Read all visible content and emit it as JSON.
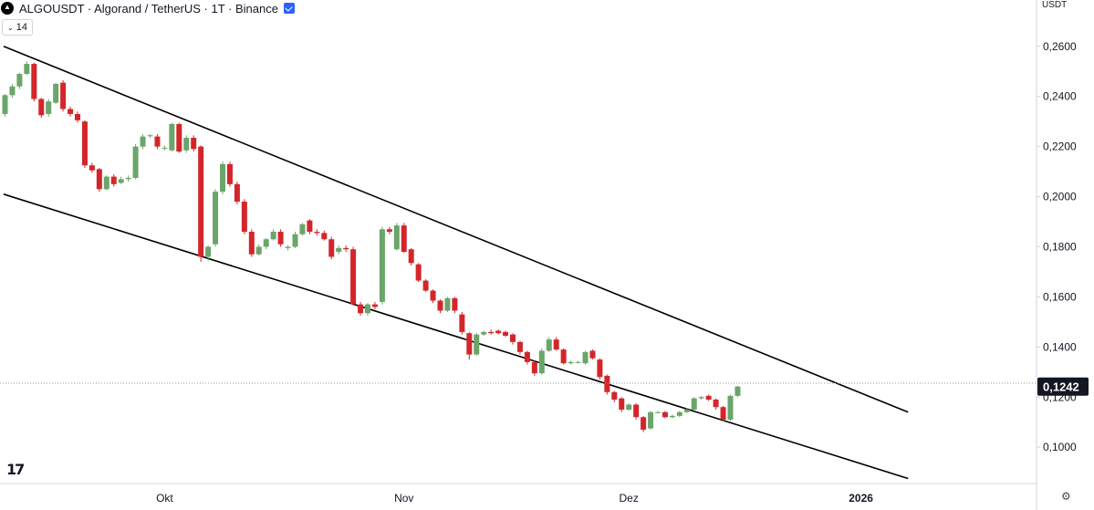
{
  "header": {
    "symbol_line": "ALGOUSDT · Algorand / TetherUS · 1T · Binance"
  },
  "indicator_toggle": {
    "value": "14"
  },
  "currency_label": "USDT",
  "branding": {
    "logo_text": "17"
  },
  "colors": {
    "up": "#6aa56a",
    "down": "#d3262b",
    "line": "#000000",
    "axis": "#d1d4dc",
    "price_tag": "#131722"
  },
  "chart_data": {
    "type": "candlestick",
    "title": "ALGOUSDT · Algorand / TetherUS · 1T · Binance",
    "ylim": [
      0.0855,
      0.2785
    ],
    "y_ticks": [
      {
        "value": 0.26,
        "label": "0,2600"
      },
      {
        "value": 0.24,
        "label": "0,2400"
      },
      {
        "value": 0.22,
        "label": "0,2200"
      },
      {
        "value": 0.2,
        "label": "0,2000"
      },
      {
        "value": 0.18,
        "label": "0,1800"
      },
      {
        "value": 0.16,
        "label": "0,1600"
      },
      {
        "value": 0.14,
        "label": "0,1400"
      },
      {
        "value": 0.12,
        "label": "0,1200"
      },
      {
        "value": 0.1,
        "label": "0,1000"
      }
    ],
    "x_ticks": [
      {
        "index": 22,
        "label": "Okt"
      },
      {
        "index": 55,
        "label": "Nov"
      },
      {
        "index": 86,
        "label": "Dez"
      },
      {
        "index": 118,
        "label": "2026"
      }
    ],
    "last_price": {
      "value": 0.1242,
      "label": "0,1242"
    },
    "candles": [
      [
        0.233,
        0.2405,
        0.241,
        0.232
      ],
      [
        0.2405,
        0.244,
        0.245,
        0.2395
      ],
      [
        0.244,
        0.249,
        0.2495,
        0.243
      ],
      [
        0.249,
        0.253,
        0.254,
        0.2485
      ],
      [
        0.253,
        0.239,
        0.2535,
        0.238
      ],
      [
        0.239,
        0.2325,
        0.2395,
        0.2315
      ],
      [
        0.233,
        0.238,
        0.239,
        0.232
      ],
      [
        0.2375,
        0.245,
        0.2455,
        0.237
      ],
      [
        0.2455,
        0.235,
        0.2465,
        0.234
      ],
      [
        0.235,
        0.233,
        0.236,
        0.232
      ],
      [
        0.233,
        0.2305,
        0.234,
        0.2295
      ],
      [
        0.23,
        0.2125,
        0.2305,
        0.2115
      ],
      [
        0.2125,
        0.2105,
        0.2135,
        0.2095
      ],
      [
        0.211,
        0.203,
        0.2115,
        0.202
      ],
      [
        0.203,
        0.208,
        0.2085,
        0.2025
      ],
      [
        0.208,
        0.205,
        0.209,
        0.204
      ],
      [
        0.2055,
        0.207,
        0.208,
        0.205
      ],
      [
        0.207,
        0.2075,
        0.2085,
        0.206
      ],
      [
        0.2075,
        0.22,
        0.221,
        0.207
      ],
      [
        0.22,
        0.224,
        0.225,
        0.219
      ],
      [
        0.2245,
        0.2245,
        0.225,
        0.2235
      ],
      [
        0.224,
        0.22,
        0.225,
        0.219
      ],
      [
        0.2195,
        0.2195,
        0.2205,
        0.2185
      ],
      [
        0.2185,
        0.229,
        0.2295,
        0.218
      ],
      [
        0.229,
        0.218,
        0.2295,
        0.2175
      ],
      [
        0.2185,
        0.2235,
        0.2245,
        0.2175
      ],
      [
        0.2235,
        0.219,
        0.2245,
        0.218
      ],
      [
        0.22,
        0.176,
        0.2205,
        0.174
      ],
      [
        0.176,
        0.18,
        0.1805,
        0.1745
      ],
      [
        0.181,
        0.202,
        0.203,
        0.18
      ],
      [
        0.202,
        0.213,
        0.214,
        0.201
      ],
      [
        0.213,
        0.205,
        0.214,
        0.204
      ],
      [
        0.205,
        0.198,
        0.206,
        0.197
      ],
      [
        0.198,
        0.186,
        0.199,
        0.185
      ],
      [
        0.186,
        0.177,
        0.187,
        0.176
      ],
      [
        0.177,
        0.18,
        0.181,
        0.1765
      ],
      [
        0.18,
        0.183,
        0.1835,
        0.179
      ],
      [
        0.183,
        0.186,
        0.187,
        0.1825
      ],
      [
        0.186,
        0.181,
        0.187,
        0.18
      ],
      [
        0.1795,
        0.18,
        0.1805,
        0.1785
      ],
      [
        0.18,
        0.185,
        0.186,
        0.1795
      ],
      [
        0.185,
        0.189,
        0.1895,
        0.1845
      ],
      [
        0.1905,
        0.186,
        0.191,
        0.185
      ],
      [
        0.186,
        0.1855,
        0.187,
        0.1845
      ],
      [
        0.1855,
        0.183,
        0.1865,
        0.1825
      ],
      [
        0.183,
        0.176,
        0.184,
        0.175
      ],
      [
        0.178,
        0.1795,
        0.1805,
        0.177
      ],
      [
        0.1795,
        0.179,
        0.1805,
        0.178
      ],
      [
        0.179,
        0.157,
        0.18,
        0.1565
      ],
      [
        0.157,
        0.1535,
        0.158,
        0.1525
      ],
      [
        0.1535,
        0.157,
        0.1575,
        0.1525
      ],
      [
        0.157,
        0.156,
        0.158,
        0.155
      ],
      [
        0.158,
        0.187,
        0.188,
        0.157
      ],
      [
        0.187,
        0.186,
        0.188,
        0.185
      ],
      [
        0.179,
        0.1885,
        0.1895,
        0.1785
      ],
      [
        0.1885,
        0.178,
        0.1895,
        0.1775
      ],
      [
        0.179,
        0.1735,
        0.1795,
        0.1725
      ],
      [
        0.173,
        0.1665,
        0.1735,
        0.166
      ],
      [
        0.1665,
        0.1625,
        0.167,
        0.162
      ],
      [
        0.1625,
        0.1585,
        0.163,
        0.1575
      ],
      [
        0.1585,
        0.1545,
        0.159,
        0.1535
      ],
      [
        0.1545,
        0.1595,
        0.16,
        0.154
      ],
      [
        0.1595,
        0.1545,
        0.16,
        0.1535
      ],
      [
        0.153,
        0.146,
        0.154,
        0.145
      ],
      [
        0.1455,
        0.137,
        0.146,
        0.135
      ],
      [
        0.137,
        0.145,
        0.1455,
        0.1365
      ],
      [
        0.145,
        0.146,
        0.1465,
        0.1445
      ],
      [
        0.146,
        0.1455,
        0.147,
        0.145
      ],
      [
        0.1465,
        0.1455,
        0.147,
        0.145
      ],
      [
        0.146,
        0.1445,
        0.1465,
        0.144
      ],
      [
        0.145,
        0.142,
        0.1455,
        0.141
      ],
      [
        0.142,
        0.138,
        0.1425,
        0.137
      ],
      [
        0.138,
        0.134,
        0.1385,
        0.133
      ],
      [
        0.134,
        0.1295,
        0.1345,
        0.1285
      ],
      [
        0.1295,
        0.1385,
        0.1395,
        0.129
      ],
      [
        0.1385,
        0.143,
        0.144,
        0.138
      ],
      [
        0.143,
        0.139,
        0.144,
        0.1385
      ],
      [
        0.139,
        0.1335,
        0.1395,
        0.133
      ],
      [
        0.1335,
        0.134,
        0.1345,
        0.133
      ],
      [
        0.134,
        0.134,
        0.1345,
        0.1335
      ],
      [
        0.1335,
        0.138,
        0.1385,
        0.133
      ],
      [
        0.1385,
        0.1355,
        0.139,
        0.135
      ],
      [
        0.135,
        0.128,
        0.1355,
        0.127
      ],
      [
        0.1285,
        0.122,
        0.129,
        0.121
      ],
      [
        0.122,
        0.119,
        0.1225,
        0.118
      ],
      [
        0.1195,
        0.115,
        0.12,
        0.114
      ],
      [
        0.115,
        0.117,
        0.1175,
        0.1145
      ],
      [
        0.117,
        0.112,
        0.1175,
        0.111
      ],
      [
        0.112,
        0.107,
        0.1125,
        0.106
      ],
      [
        0.1075,
        0.114,
        0.1145,
        0.107
      ],
      [
        0.114,
        0.114,
        0.1145,
        0.1135
      ],
      [
        0.114,
        0.112,
        0.1145,
        0.1115
      ],
      [
        0.112,
        0.1125,
        0.113,
        0.1115
      ],
      [
        0.1125,
        0.114,
        0.1145,
        0.112
      ],
      [
        0.114,
        0.115,
        0.1155,
        0.1135
      ],
      [
        0.115,
        0.1195,
        0.12,
        0.1145
      ],
      [
        0.1195,
        0.12,
        0.1205,
        0.119
      ],
      [
        0.1205,
        0.119,
        0.121,
        0.1185
      ],
      [
        0.119,
        0.116,
        0.1195,
        0.115
      ],
      [
        0.116,
        0.111,
        0.1165,
        0.1105
      ],
      [
        0.111,
        0.1205,
        0.121,
        0.1105
      ],
      [
        0.1205,
        0.1242,
        0.1245,
        0.12
      ]
    ],
    "trendlines": [
      {
        "name": "upper",
        "from": {
          "index": -0.2,
          "value": 0.26
        },
        "to": {
          "index": 124.5,
          "value": 0.114
        }
      },
      {
        "name": "lower",
        "from": {
          "index": -0.2,
          "value": 0.201
        },
        "to": {
          "index": 124.5,
          "value": 0.0875
        }
      }
    ],
    "grid": false,
    "legend": "none"
  }
}
